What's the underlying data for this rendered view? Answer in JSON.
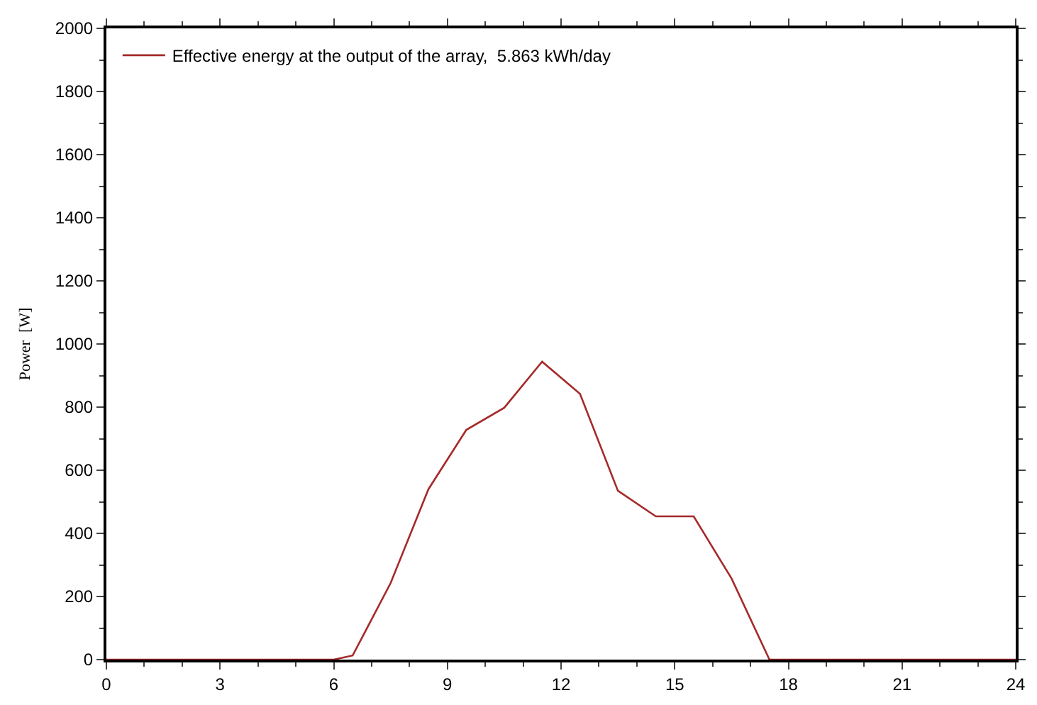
{
  "chart_data": {
    "type": "line",
    "ylabel": "Power  [W]",
    "x": [
      0,
      6,
      6.5,
      7.5,
      8.5,
      9.5,
      10.5,
      11.5,
      12.5,
      13.5,
      14.5,
      15.5,
      16.5,
      17.5,
      24
    ],
    "series": [
      {
        "name": "Effective energy at the output of the array,  5.863 kWh/day",
        "color": "#a52a2a",
        "values": [
          0,
          0,
          13,
          242,
          540,
          728,
          798,
          944,
          842,
          535,
          454,
          454,
          257,
          0,
          0
        ]
      }
    ],
    "xlim": [
      0,
      24
    ],
    "xticks": [
      0,
      3,
      6,
      9,
      12,
      15,
      18,
      21,
      24
    ],
    "ylim": [
      0,
      2000
    ],
    "yticks": [
      0,
      200,
      400,
      600,
      800,
      1000,
      1200,
      1400,
      1600,
      1800,
      2000
    ],
    "legend": "top left",
    "marker": "none",
    "line_style": "solid"
  }
}
